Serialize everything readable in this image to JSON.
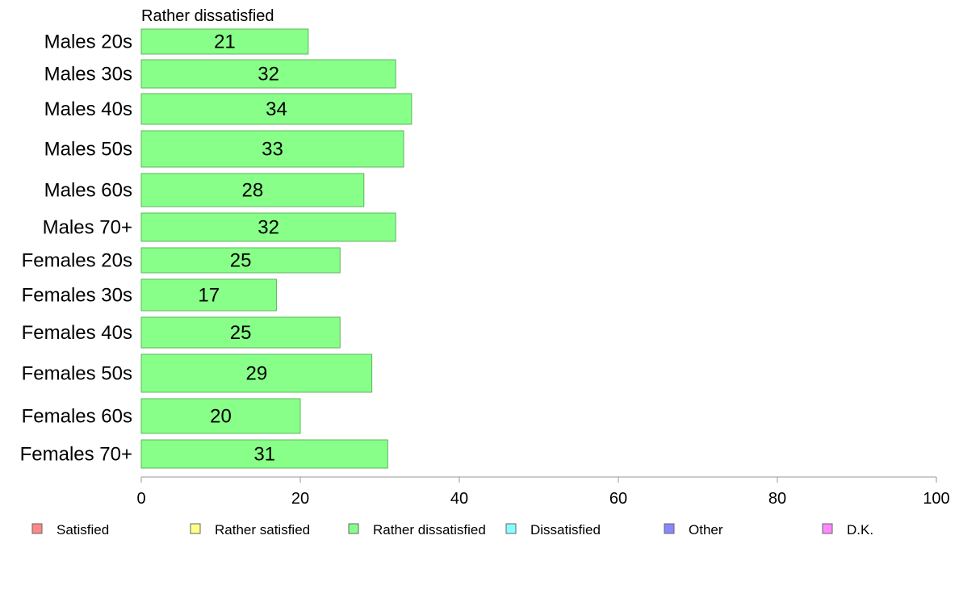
{
  "chart_data": {
    "type": "bar",
    "orientation": "horizontal",
    "title": "Rather dissatisfied",
    "categories": [
      "Males 20s",
      "Males 30s",
      "Males 40s",
      "Males 50s",
      "Males 60s",
      "Males 70+",
      "Females 20s",
      "Females 30s",
      "Females 40s",
      "Females 50s",
      "Females 60s",
      "Females 70+"
    ],
    "values": [
      21,
      32,
      34,
      33,
      28,
      32,
      25,
      17,
      25,
      29,
      20,
      31
    ],
    "data_labels": [
      "21",
      "32",
      "34",
      "33",
      "28",
      "32",
      "25",
      "17",
      "25",
      "29",
      "20",
      "31"
    ],
    "xlim": [
      0,
      100
    ],
    "xticks": [
      "0",
      "20",
      "40",
      "60",
      "80",
      "100"
    ],
    "grid": false,
    "bar_color": "#88ff88",
    "bar_stroke": "#5fb45f",
    "legend_position": "bottom",
    "legend": [
      {
        "label": "Satisfied",
        "color": "#ff8888"
      },
      {
        "label": "Rather satisfied",
        "color": "#ffff88"
      },
      {
        "label": "Rather dissatisfied",
        "color": "#88ff88"
      },
      {
        "label": "Dissatisfied",
        "color": "#88ffff"
      },
      {
        "label": "Other",
        "color": "#8888ff"
      },
      {
        "label": "D.K.",
        "color": "#ff88ff"
      }
    ]
  }
}
